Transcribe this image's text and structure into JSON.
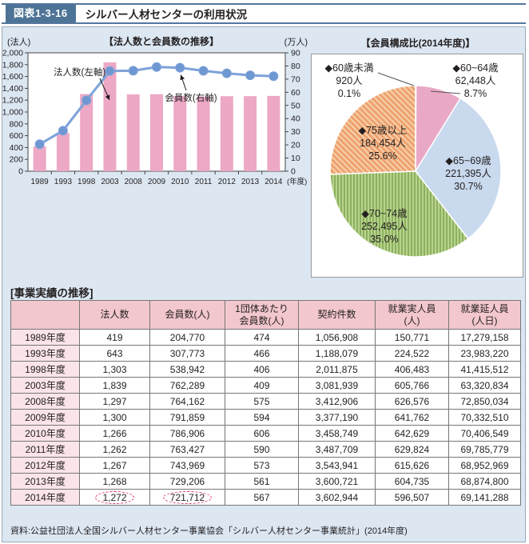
{
  "header": {
    "label": "図表1-3-16",
    "title": "シルバー人材センターの利用状況"
  },
  "colors": {
    "accent_blue": "#4d7396",
    "panel_bg": "#dce7f2",
    "bar_pink": "#eca8c5",
    "line_blue": "#7da2d9",
    "marker_blue": "#6f97d2",
    "pie_sliver": "#dbe7f4",
    "pie_pink": "#e9a9c6",
    "pie_blue": "#c9d9ee",
    "pie_green_base": "#b9d38e",
    "pie_green_stripe": "#86ad58",
    "pie_orange_base": "#eda26f",
    "pie_orange_stripe": "#f8d0aa",
    "table_header_bg": "#f2c7cd",
    "table_year_bg": "#fae4e7",
    "circle_red": "#e23a5f"
  },
  "chart_data": [
    {
      "type": "bar",
      "subtype": "combo-bar-line",
      "title": "【法人数と会員数の推移】",
      "categories": [
        "1989",
        "1993",
        "1998",
        "2003",
        "2008",
        "2009",
        "2010",
        "2011",
        "2012",
        "2013",
        "2014"
      ],
      "x_axis_suffix": "(年度)",
      "left_axis": {
        "label": "(法人)",
        "min": 0,
        "max": 2000,
        "step": 200
      },
      "right_axis": {
        "label": "(万人)",
        "min": 0,
        "max": 90,
        "step": 10
      },
      "series": [
        {
          "name": "法人数(左軸)",
          "type": "bar",
          "axis": "left",
          "values": [
            419,
            643,
            1303,
            1839,
            1297,
            1300,
            1266,
            1262,
            1267,
            1268,
            1272
          ]
        },
        {
          "name": "会員数(右軸)",
          "type": "line",
          "axis": "right",
          "values": [
            20.5,
            30.8,
            53.9,
            76.2,
            76.4,
            79.2,
            78.7,
            76.3,
            74.4,
            72.9,
            72.2
          ]
        }
      ],
      "legend_position": "annotations-inside-plot",
      "grid": false
    },
    {
      "type": "pie",
      "title": "【会員構成比(2014年度)】",
      "slices": [
        {
          "label": "◆60歳未満",
          "count": "920人",
          "pct": 0.1,
          "placement": "outside-left"
        },
        {
          "label": "◆60~64歳",
          "count": "62,448人",
          "pct": 8.7,
          "placement": "outside-right"
        },
        {
          "label": "◆65~69歳",
          "count": "221,395人",
          "pct": 30.7,
          "placement": "inside"
        },
        {
          "label": "◆70~74歳",
          "count": "252,495人",
          "pct": 35.0,
          "placement": "inside"
        },
        {
          "label": "◆75歳以上",
          "count": "184,454人",
          "pct": 25.6,
          "placement": "inside"
        }
      ],
      "start_angle_deg": -90,
      "direction": "clockwise"
    }
  ],
  "table": {
    "section_title": "[事業実績の推移]",
    "columns": [
      "",
      "法人数",
      "会員数(人)",
      "1団体あたり\n会員数(人)",
      "契約件数",
      "就業実人員\n(人)",
      "就業延人員\n(人日)"
    ],
    "rows": [
      {
        "year": "1989年度",
        "values": [
          "419",
          "204,770",
          "474",
          "1,056,908",
          "150,771",
          "17,279,158"
        ]
      },
      {
        "year": "1993年度",
        "values": [
          "643",
          "307,773",
          "466",
          "1,188,079",
          "224,522",
          "23,983,220"
        ]
      },
      {
        "year": "1998年度",
        "values": [
          "1,303",
          "538,942",
          "406",
          "2,011,875",
          "406,483",
          "41,415,512"
        ]
      },
      {
        "year": "2003年度",
        "values": [
          "1,839",
          "762,289",
          "409",
          "3,081,939",
          "605,766",
          "63,320,834"
        ]
      },
      {
        "year": "2008年度",
        "values": [
          "1,297",
          "764,162",
          "575",
          "3,412,906",
          "626,576",
          "72,850,034"
        ]
      },
      {
        "year": "2009年度",
        "values": [
          "1,300",
          "791,859",
          "594",
          "3,377,190",
          "641,762",
          "70,332,510"
        ]
      },
      {
        "year": "2010年度",
        "values": [
          "1,266",
          "786,906",
          "606",
          "3,458,749",
          "642,629",
          "70,406,549"
        ]
      },
      {
        "year": "2011年度",
        "values": [
          "1,262",
          "763,427",
          "590",
          "3,487,709",
          "629,824",
          "69,785,779"
        ]
      },
      {
        "year": "2012年度",
        "values": [
          "1,267",
          "743,969",
          "573",
          "3,543,941",
          "615,626",
          "68,952,969"
        ]
      },
      {
        "year": "2013年度",
        "values": [
          "1,268",
          "729,206",
          "561",
          "3,600,721",
          "604,735",
          "68,874,800"
        ]
      },
      {
        "year": "2014年度",
        "values": [
          "1,272",
          "721,712",
          "567",
          "3,602,944",
          "596,507",
          "69,141,288"
        ]
      }
    ],
    "circled": {
      "year": "2014年度",
      "value_indexes": [
        0,
        1
      ]
    }
  },
  "source": "資料:公益社団法人全国シルバー人材センター事業協会「シルバー人材センター事業統計」(2014年度)"
}
